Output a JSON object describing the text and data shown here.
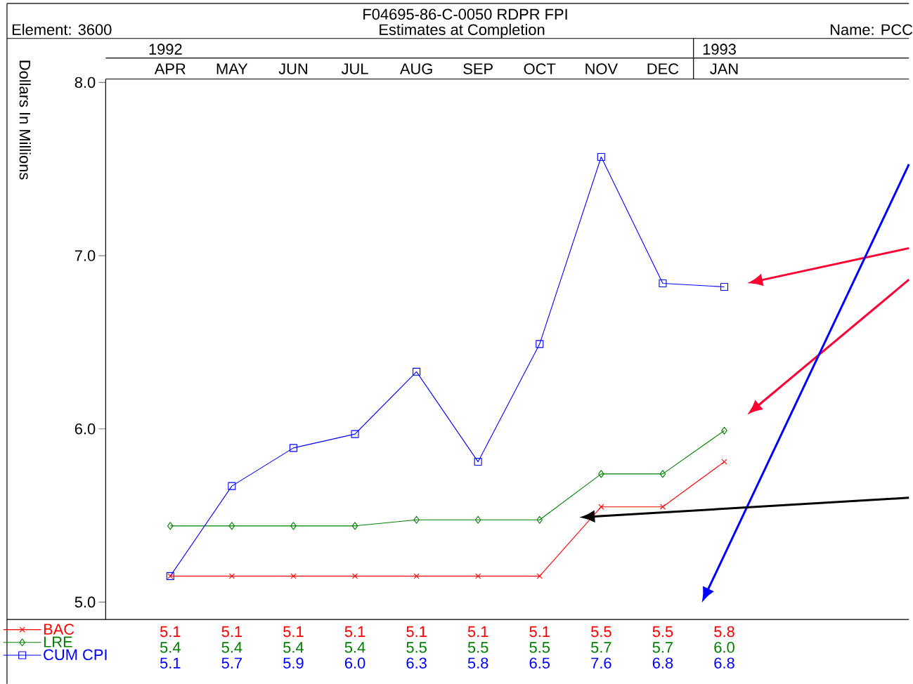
{
  "chart_data": {
    "type": "line",
    "title": "F04695-86-C-0050 RDPR FPI",
    "subtitle": "Estimates at Completion",
    "ylabel": "Dollars In Millions",
    "categories": [
      "APR",
      "MAY",
      "JUN",
      "JUL",
      "AUG",
      "SEP",
      "OCT",
      "NOV",
      "DEC",
      "JAN"
    ],
    "series": [
      {
        "name": "BAC",
        "color": "#ff0000",
        "marker": "cross",
        "values": [
          5.15,
          5.15,
          5.15,
          5.15,
          5.15,
          5.15,
          5.15,
          5.55,
          5.55,
          5.81
        ],
        "value_labels": [
          "5.1",
          "5.1",
          "5.1",
          "5.1",
          "5.1",
          "5.1",
          "5.1",
          "5.5",
          "5.5",
          "5.8"
        ]
      },
      {
        "name": "LRE",
        "color": "#008000",
        "marker": "diamond",
        "values": [
          5.44,
          5.44,
          5.44,
          5.44,
          5.475,
          5.475,
          5.475,
          5.74,
          5.74,
          5.99
        ],
        "value_labels": [
          "5.4",
          "5.4",
          "5.4",
          "5.4",
          "5.5",
          "5.5",
          "5.5",
          "5.7",
          "5.7",
          "6.0"
        ]
      },
      {
        "name": "CUM CPI",
        "color": "#0000ff",
        "marker": "square",
        "values": [
          5.15,
          5.67,
          5.89,
          5.97,
          6.33,
          5.81,
          6.49,
          7.57,
          6.84,
          6.82
        ],
        "value_labels": [
          "5.1",
          "5.7",
          "5.9",
          "6.0",
          "6.3",
          "5.8",
          "6.5",
          "7.6",
          "6.8",
          "6.8"
        ]
      }
    ],
    "ylim": [
      4.9,
      8.02
    ],
    "yticks": [
      {
        "value": 5,
        "label": "5.0"
      },
      {
        "value": 6,
        "label": "6.0"
      },
      {
        "value": 7,
        "label": "7.0"
      },
      {
        "value": 8,
        "label": "8.0"
      }
    ],
    "legend": "bottom left",
    "annotations": [
      "Element: 3600",
      "Name: PCC",
      "1992",
      "1993"
    ]
  }
}
